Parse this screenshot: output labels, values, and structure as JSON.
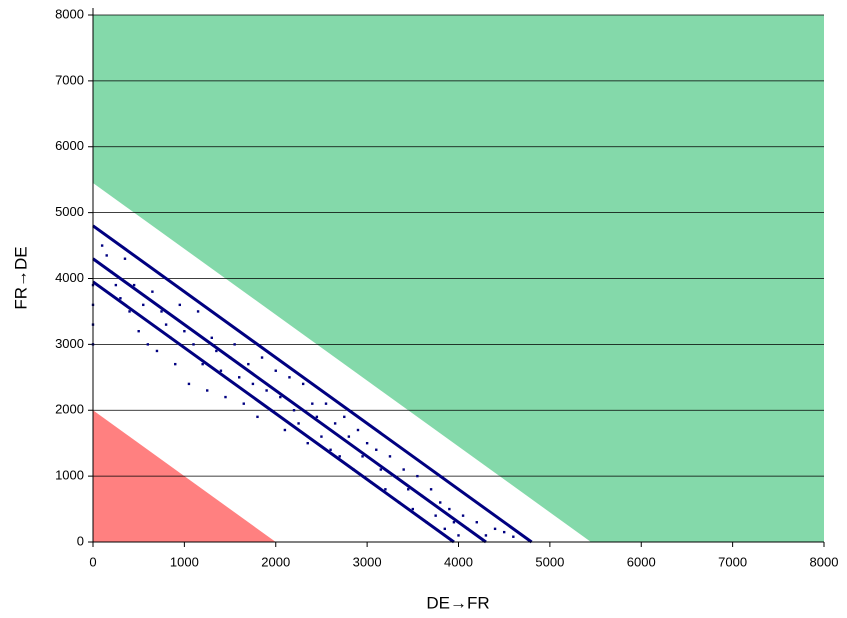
{
  "chart_data": {
    "type": "scatter",
    "x_label": "DE→FR",
    "y_label": "FR→DE",
    "xlim": [
      0,
      8000
    ],
    "ylim": [
      0,
      8000
    ],
    "xticks": [
      0,
      1000,
      2000,
      3000,
      4000,
      5000,
      6000,
      7000,
      8000
    ],
    "yticks": [
      0,
      1000,
      2000,
      3000,
      4000,
      5000,
      6000,
      7000,
      8000
    ],
    "grid": "y",
    "areas": [
      {
        "color": "#84d9aa",
        "x": [
          0,
          0,
          8000,
          8000,
          5450
        ],
        "y": [
          5450,
          8000,
          8000,
          0,
          0
        ]
      },
      {
        "color": "#ff8080",
        "x": [
          0,
          0,
          2000
        ],
        "y": [
          2000,
          0,
          0
        ]
      }
    ],
    "series": [
      {
        "mode": "line",
        "color": "#000080",
        "x": [
          0,
          4800
        ],
        "y": [
          4800,
          0
        ]
      },
      {
        "mode": "line",
        "color": "#000080",
        "x": [
          0,
          4300
        ],
        "y": [
          4300,
          0
        ]
      },
      {
        "mode": "line",
        "color": "#000080",
        "x": [
          0,
          3950
        ],
        "y": [
          3950,
          0
        ]
      },
      {
        "mode": "markers",
        "color": "#000080",
        "x": [
          0,
          0,
          0,
          0,
          100,
          150,
          200,
          250,
          300,
          350,
          400,
          450,
          500,
          550,
          600,
          650,
          700,
          750,
          800,
          850,
          900,
          950,
          1000,
          1050,
          1100,
          1150,
          1200,
          1250,
          1300,
          1350,
          1400,
          1450,
          1500,
          1550,
          1600,
          1650,
          1700,
          1750,
          1800,
          1850,
          1900,
          1950,
          2000,
          2050,
          2100,
          2150,
          2200,
          2250,
          2300,
          2350,
          2400,
          2450,
          2500,
          2550,
          2600,
          2650,
          2700,
          2750,
          2800,
          2850,
          2900,
          2950,
          3000,
          3050,
          3100,
          3150,
          3200,
          3250,
          3300,
          3350,
          3400,
          3450,
          3500,
          3550,
          3600,
          3650,
          3700,
          3750,
          3800,
          3850,
          3900,
          3950,
          4000,
          4050,
          4100,
          4200,
          4300,
          4400,
          4500,
          4600
        ],
        "y": [
          3000,
          3300,
          3600,
          3900,
          4500,
          4350,
          4100,
          3900,
          3700,
          4300,
          3500,
          3900,
          3200,
          3600,
          3000,
          3800,
          2900,
          3500,
          3300,
          3100,
          2700,
          3600,
          3200,
          2400,
          3000,
          3500,
          2700,
          2300,
          3100,
          2900,
          2600,
          2200,
          2800,
          3000,
          2500,
          2100,
          2700,
          2400,
          1900,
          2800,
          2300,
          2000,
          2600,
          2200,
          1700,
          2500,
          2000,
          1800,
          2400,
          1500,
          2100,
          1900,
          1600,
          2100,
          1400,
          1800,
          1300,
          1900,
          1600,
          1100,
          1700,
          1300,
          1500,
          900,
          1400,
          1100,
          800,
          1300,
          1000,
          600,
          1100,
          800,
          500,
          1000,
          700,
          300,
          800,
          400,
          600,
          200,
          500,
          300,
          100,
          400,
          200,
          300,
          100,
          200,
          150,
          80
        ]
      }
    ]
  }
}
